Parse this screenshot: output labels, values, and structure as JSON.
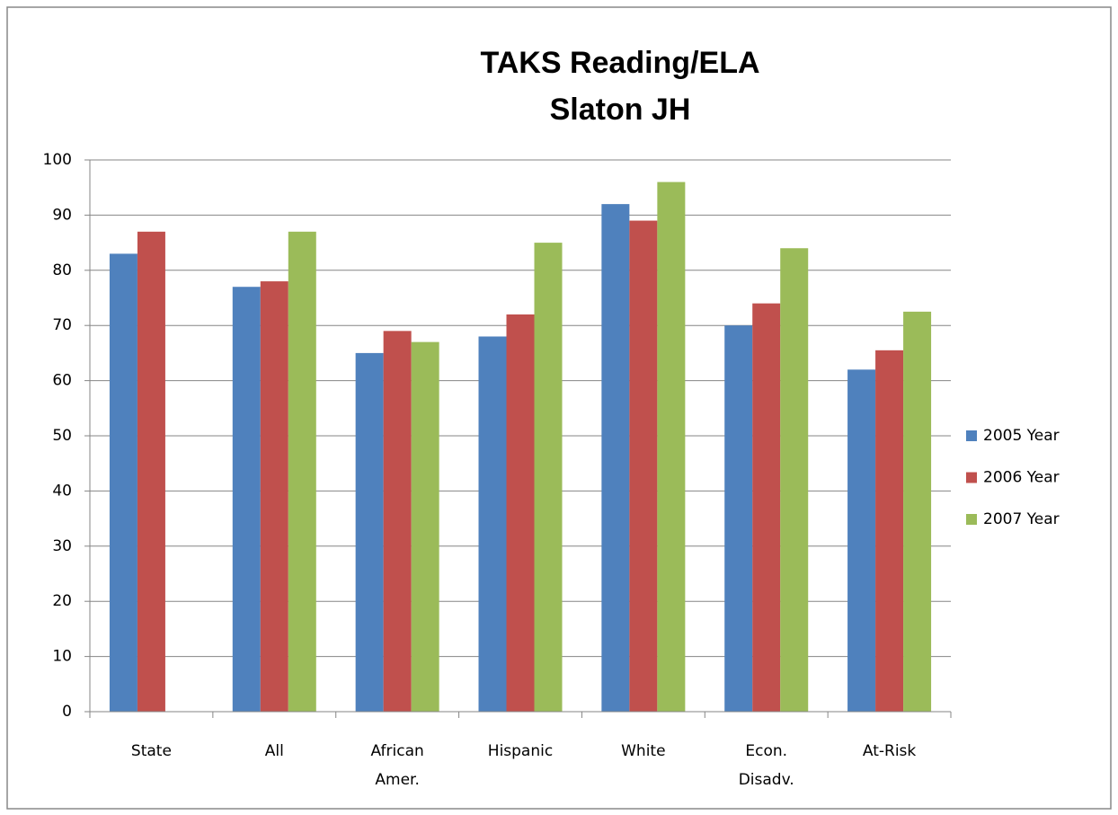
{
  "chart_data": {
    "type": "bar",
    "title": [
      "TAKS Reading/ELA",
      "Slaton JH"
    ],
    "categories": [
      "State",
      "All",
      "African Amer.",
      "Hispanic",
      "White",
      "Econ. Disadv.",
      "At-Risk"
    ],
    "series": [
      {
        "name": "2005 Year",
        "color": "#4f81bd",
        "values": [
          83,
          77,
          65,
          68,
          92,
          70,
          62
        ]
      },
      {
        "name": "2006 Year",
        "color": "#c0504d",
        "values": [
          87,
          78,
          69,
          72,
          89,
          74,
          65.5
        ]
      },
      {
        "name": "2007 Year",
        "color": "#9bbb59",
        "values": [
          null,
          87,
          67,
          85,
          96,
          84,
          72.5
        ]
      }
    ],
    "ylim": [
      0,
      100
    ],
    "yticks": [
      0,
      10,
      20,
      30,
      40,
      50,
      60,
      70,
      80,
      90,
      100
    ],
    "grid": true,
    "legend": "right"
  }
}
